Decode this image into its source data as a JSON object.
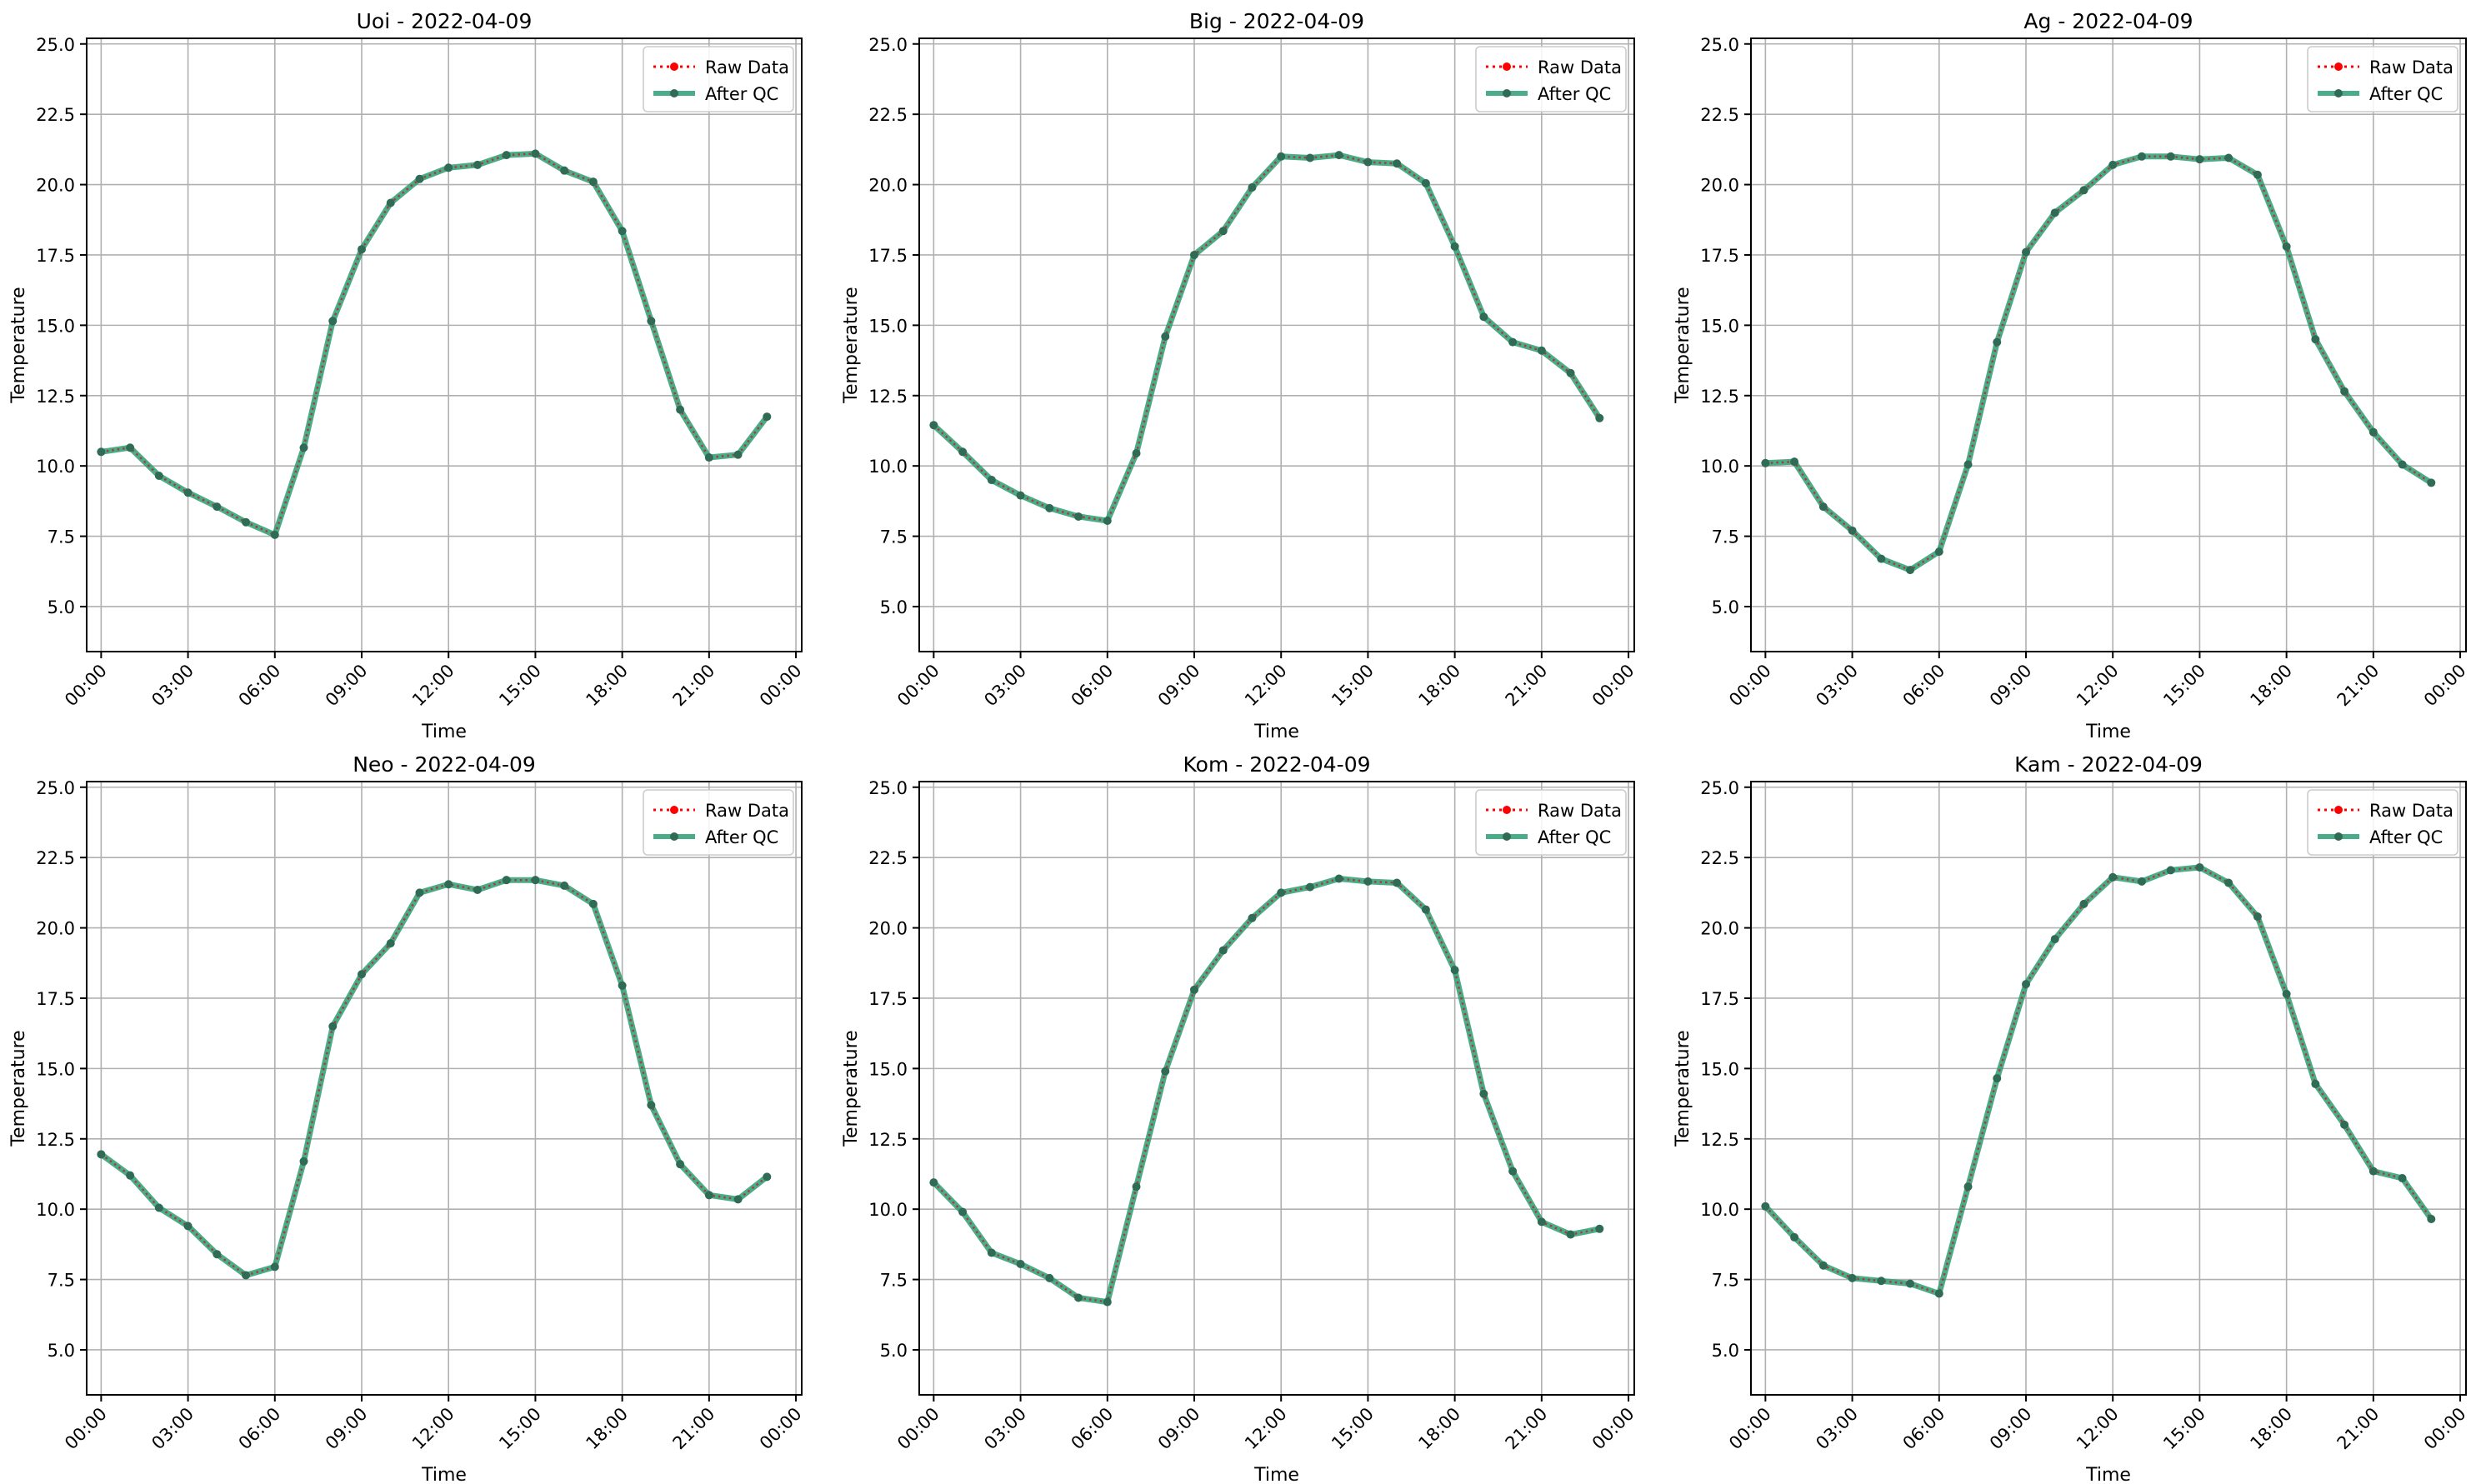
{
  "chart_data": {
    "type": "line",
    "layout": "2x3 grid of subplots",
    "shared": {
      "xlabel": "Time",
      "ylabel": "Temperature",
      "x_tick_labels": [
        "00:00",
        "03:00",
        "06:00",
        "09:00",
        "12:00",
        "15:00",
        "18:00",
        "21:00",
        "00:00"
      ],
      "x_tick_hours": [
        0,
        3,
        6,
        9,
        12,
        15,
        18,
        21,
        24
      ],
      "x": [
        0,
        1,
        2,
        3,
        4,
        5,
        6,
        7,
        8,
        9,
        10,
        11,
        12,
        13,
        14,
        15,
        16,
        17,
        18,
        19,
        20,
        21,
        22,
        23
      ],
      "xlim_hours": [
        -0.5,
        24.2
      ],
      "ylim": [
        3.4,
        25.2
      ],
      "y_ticks": [
        5.0,
        7.5,
        10.0,
        12.5,
        15.0,
        17.5,
        20.0,
        22.5,
        25.0
      ],
      "y_tick_labels": [
        "5.0",
        "7.5",
        "10.0",
        "12.5",
        "15.0",
        "17.5",
        "20.0",
        "22.5",
        "25.0"
      ],
      "grid": true,
      "legend_position": "top-right",
      "legend": [
        {
          "name": "Raw Data",
          "color": "#ff0000",
          "style": "dotted with points"
        },
        {
          "name": "After QC",
          "color": "#2a9d73",
          "style": "solid with points"
        }
      ]
    },
    "subplots": [
      {
        "title": "Uoi - 2022-04-09",
        "values": [
          10.5,
          10.65,
          9.65,
          9.05,
          8.55,
          8.0,
          7.55,
          10.65,
          15.15,
          17.7,
          19.35,
          20.2,
          20.6,
          20.7,
          21.05,
          21.1,
          20.5,
          20.1,
          18.35,
          15.15,
          12.0,
          10.3,
          10.4,
          11.75
        ]
      },
      {
        "title": "Big - 2022-04-09",
        "values": [
          11.45,
          10.5,
          9.5,
          8.95,
          8.5,
          8.2,
          8.05,
          10.45,
          14.6,
          17.5,
          18.35,
          19.9,
          21.0,
          20.95,
          21.05,
          20.8,
          20.75,
          20.05,
          17.8,
          15.3,
          14.4,
          14.1,
          13.3,
          11.7
        ]
      },
      {
        "title": "Ag - 2022-04-09",
        "values": [
          10.1,
          10.15,
          8.55,
          7.7,
          6.7,
          6.3,
          6.95,
          10.05,
          14.4,
          17.6,
          19.0,
          19.8,
          20.7,
          21.0,
          21.0,
          20.9,
          20.95,
          20.35,
          17.8,
          14.5,
          12.65,
          11.2,
          10.05,
          9.4
        ]
      },
      {
        "title": "Neo - 2022-04-09",
        "values": [
          11.95,
          11.2,
          10.05,
          9.4,
          8.4,
          7.65,
          7.95,
          11.7,
          16.5,
          18.35,
          19.45,
          21.25,
          21.55,
          21.35,
          21.7,
          21.7,
          21.5,
          20.85,
          17.95,
          13.7,
          11.6,
          10.5,
          10.35,
          11.15
        ]
      },
      {
        "title": "Kom - 2022-04-09",
        "values": [
          10.95,
          9.9,
          8.45,
          8.05,
          7.55,
          6.85,
          6.7,
          10.8,
          14.9,
          17.8,
          19.2,
          20.35,
          21.25,
          21.45,
          21.75,
          21.65,
          21.6,
          20.65,
          18.5,
          14.1,
          11.35,
          9.55,
          9.1,
          9.3
        ]
      },
      {
        "title": "Kam - 2022-04-09",
        "values": [
          10.1,
          9.0,
          8.0,
          7.55,
          7.45,
          7.35,
          7.0,
          10.8,
          14.65,
          18.0,
          19.6,
          20.85,
          21.8,
          21.65,
          22.05,
          22.15,
          21.6,
          20.4,
          17.65,
          14.45,
          13.0,
          11.35,
          11.1,
          9.65
        ]
      }
    ]
  }
}
